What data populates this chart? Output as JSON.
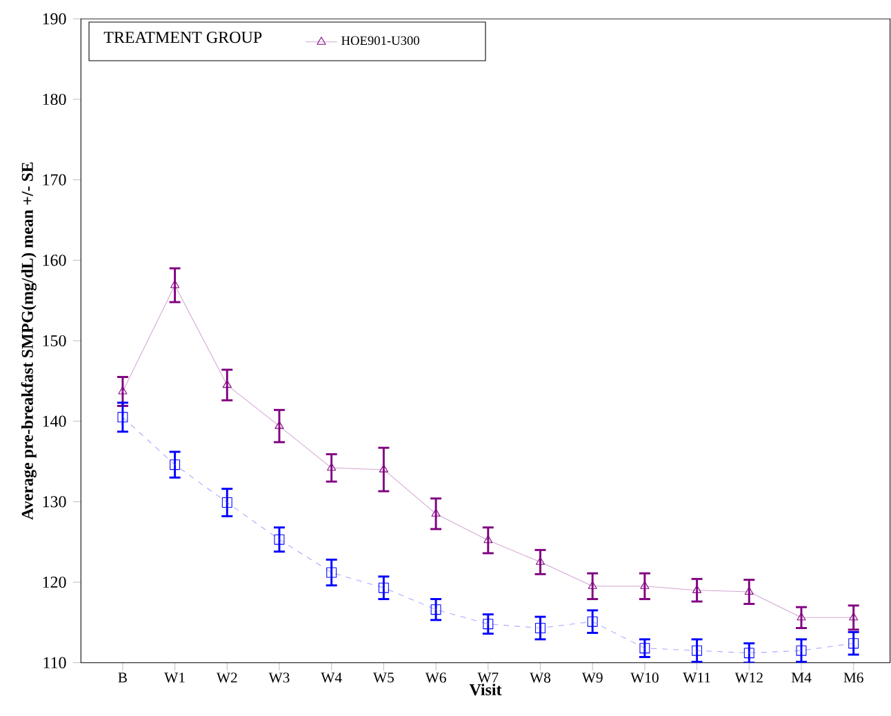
{
  "chart_data": {
    "type": "line",
    "xlabel": "Visit",
    "ylabel": "Average pre-breakfast SMPG(mg/dL) mean +/- SE",
    "legend_title": "TREATMENT GROUP",
    "categories": [
      "B",
      "W1",
      "W2",
      "W3",
      "W4",
      "W5",
      "W6",
      "W7",
      "W8",
      "W9",
      "W10",
      "W11",
      "W12",
      "M4",
      "M6"
    ],
    "series": [
      {
        "name": "HOE901-U300",
        "color": "#800080",
        "marker": "triangle",
        "line_style": "solid",
        "values": [
          143.7,
          156.9,
          144.5,
          139.4,
          134.2,
          134.0,
          128.5,
          125.2,
          122.5,
          119.5,
          119.5,
          119.0,
          118.8,
          115.6,
          115.6
        ],
        "errors": [
          1.8,
          2.1,
          1.9,
          2.0,
          1.7,
          2.7,
          1.9,
          1.6,
          1.5,
          1.6,
          1.6,
          1.4,
          1.5,
          1.3,
          1.5
        ]
      },
      {
        "color": "#0000ff",
        "marker": "square",
        "line_style": "dashed",
        "values": [
          140.5,
          134.6,
          129.9,
          125.3,
          121.2,
          119.3,
          116.6,
          114.8,
          114.3,
          115.1,
          111.8,
          111.5,
          111.2,
          111.5,
          112.4
        ],
        "errors": [
          1.8,
          1.6,
          1.7,
          1.5,
          1.6,
          1.4,
          1.3,
          1.2,
          1.4,
          1.4,
          1.1,
          1.4,
          1.2,
          1.4,
          1.4
        ]
      }
    ],
    "ylim": [
      110,
      190
    ],
    "yticks": [
      110,
      120,
      130,
      140,
      150,
      160,
      170,
      180,
      190
    ],
    "legend": "top left",
    "grid": false
  }
}
